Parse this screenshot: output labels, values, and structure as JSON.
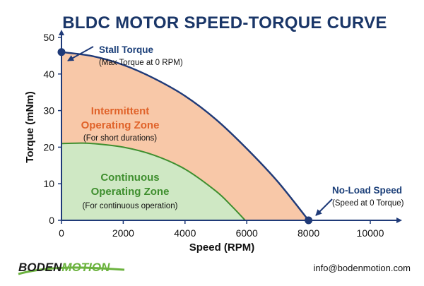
{
  "chart_data": {
    "type": "area",
    "title": "BLDC MOTOR SPEED-TORQUE CURVE",
    "xlabel": "Speed (RPM)",
    "ylabel": "Torque (mNm)",
    "xlim": [
      0,
      10500
    ],
    "ylim": [
      0,
      52
    ],
    "x_ticks": [
      "0",
      "2000",
      "4000",
      "6000",
      "8000",
      "10000"
    ],
    "y_ticks": [
      "0",
      "10",
      "20",
      "30",
      "40",
      "50"
    ],
    "grid": false,
    "series": [
      {
        "name": "Intermittent Operating Zone",
        "color": "#f8c8a8",
        "line_color": "#1f3a78",
        "x": [
          0,
          1000,
          2000,
          3000,
          4000,
          5000,
          6000,
          7000,
          8000
        ],
        "y": [
          46,
          44.9,
          42.5,
          38.8,
          34,
          27.6,
          19.6,
          10.6,
          0
        ]
      },
      {
        "name": "Continuous Operating Zone",
        "color": "#cfe8c4",
        "line_color": "#3f8f2f",
        "x": [
          0,
          500,
          1000,
          2000,
          3000,
          4000,
          5000,
          5500,
          5950
        ],
        "y": [
          21,
          21.1,
          21,
          20,
          17.8,
          14,
          8,
          4,
          0
        ]
      }
    ],
    "points": [
      {
        "name": "Stall Torque",
        "description": "(Max Torque at 0 RPM)",
        "x": 0,
        "y": 46
      },
      {
        "name": "No-Load Speed",
        "description": "(Speed at 0 Torque)",
        "x": 8000,
        "y": 0
      }
    ],
    "annotations": [
      {
        "title_lines": [
          "Intermittent",
          "Operating Zone"
        ],
        "subtitle": "(For short durations)"
      },
      {
        "title_lines": [
          "Continuous",
          "Operating Zone"
        ],
        "subtitle": "(For continuous operation)"
      }
    ]
  },
  "footer": {
    "logo_part1": "BODEN",
    "logo_part2": "MOTION",
    "email": "info@bodenmotion.com"
  },
  "colors": {
    "title": "#1a3668",
    "axis": "#1f3a78",
    "marker": "#1f3a78",
    "intermittent_fill": "#f8c8a8",
    "continuous_fill": "#cfe8c4",
    "continuous_line": "#3f8f2f",
    "intermittent_text": "#e0632a",
    "continuous_text": "#3f8f2f",
    "logo_dark": "#1c1c1c",
    "logo_green": "#6cb33f"
  }
}
